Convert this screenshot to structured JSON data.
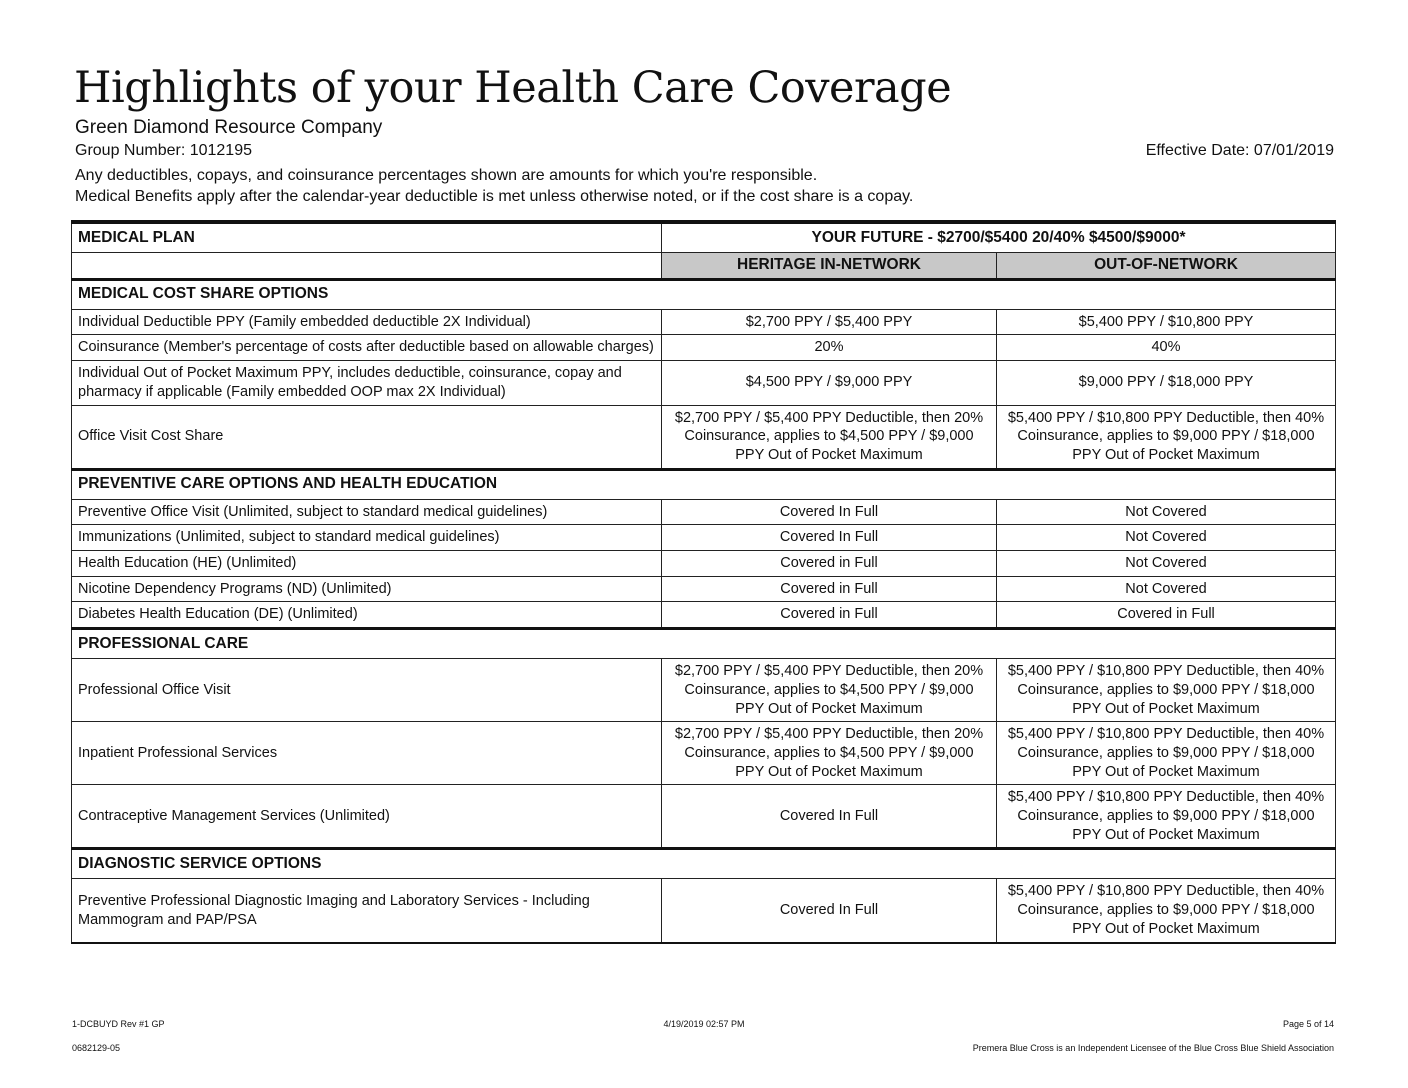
{
  "header": {
    "title": "Highlights of your Health Care Coverage",
    "company": "Green Diamond Resource Company",
    "group_number": "Group Number: 1012195",
    "effective_date": "Effective Date: 07/01/2019",
    "note1": "Any deductibles, copays, and coinsurance percentages shown are amounts for which you're responsible.",
    "note2": "Medical Benefits apply after the calendar-year deductible is met unless otherwise noted, or if the cost share is a copay."
  },
  "table": {
    "plan_label": "MEDICAL PLAN",
    "plan_name": "YOUR FUTURE - $2700/$5400 20/40%  $4500/$9000*",
    "col_in": "HERITAGE IN-NETWORK",
    "col_out": "OUT-OF-NETWORK",
    "sections": [
      {
        "title": "MEDICAL COST SHARE OPTIONS",
        "rows": [
          {
            "label": "Individual Deductible PPY (Family embedded deductible 2X Individual)",
            "in": "$2,700 PPY / $5,400 PPY",
            "out": "$5,400 PPY / $10,800 PPY"
          },
          {
            "label": "Coinsurance (Member's percentage of costs after deductible based on allowable charges)",
            "in": "20%",
            "out": "40%"
          },
          {
            "label": "Individual Out of Pocket Maximum PPY, includes deductible, coinsurance, copay and pharmacy if applicable (Family embedded OOP max 2X Individual)",
            "in": "$4,500 PPY / $9,000 PPY",
            "out": "$9,000 PPY / $18,000 PPY"
          },
          {
            "label": "Office Visit Cost Share",
            "in": "$2,700 PPY / $5,400 PPY Deductible, then 20% Coinsurance, applies to $4,500 PPY / $9,000 PPY Out of Pocket Maximum",
            "out": "$5,400 PPY / $10,800 PPY Deductible, then 40% Coinsurance, applies to $9,000 PPY / $18,000 PPY Out of Pocket Maximum"
          }
        ]
      },
      {
        "title": "PREVENTIVE CARE OPTIONS AND HEALTH EDUCATION",
        "rows": [
          {
            "label": "Preventive Office Visit (Unlimited, subject to standard medical guidelines)",
            "in": "Covered In Full",
            "out": "Not Covered"
          },
          {
            "label": "Immunizations (Unlimited, subject to standard medical guidelines)",
            "in": "Covered In Full",
            "out": "Not Covered"
          },
          {
            "label": "Health Education (HE) (Unlimited)",
            "in": "Covered in Full",
            "out": "Not Covered"
          },
          {
            "label": "Nicotine Dependency Programs (ND) (Unlimited)",
            "in": "Covered in Full",
            "out": "Not Covered"
          },
          {
            "label": "Diabetes Health Education (DE) (Unlimited)",
            "in": "Covered in Full",
            "out": "Covered in Full"
          }
        ]
      },
      {
        "title": "PROFESSIONAL CARE",
        "rows": [
          {
            "label": "Professional Office Visit",
            "in": "$2,700 PPY / $5,400 PPY Deductible, then 20% Coinsurance, applies to $4,500 PPY / $9,000 PPY Out of Pocket Maximum",
            "out": "$5,400 PPY / $10,800 PPY Deductible, then 40% Coinsurance, applies to $9,000 PPY / $18,000 PPY Out of Pocket Maximum"
          },
          {
            "label": "Inpatient Professional Services",
            "in": "$2,700 PPY / $5,400 PPY Deductible, then 20% Coinsurance, applies to $4,500 PPY / $9,000 PPY Out of Pocket Maximum",
            "out": "$5,400 PPY / $10,800 PPY Deductible, then 40% Coinsurance, applies to $9,000 PPY / $18,000 PPY Out of Pocket Maximum"
          },
          {
            "label": "Contraceptive Management Services (Unlimited)",
            "in": "Covered In Full",
            "out": "$5,400 PPY / $10,800 PPY Deductible, then 40% Coinsurance, applies to $9,000 PPY / $18,000 PPY Out of Pocket Maximum"
          }
        ]
      },
      {
        "title": "DIAGNOSTIC SERVICE OPTIONS",
        "rows": [
          {
            "label": "Preventive Professional Diagnostic Imaging and Laboratory Services - Including Mammogram and PAP/PSA",
            "in": "Covered In Full",
            "out": "$5,400 PPY / $10,800 PPY Deductible, then 40% Coinsurance, applies to $9,000 PPY / $18,000 PPY Out of Pocket Maximum"
          }
        ]
      }
    ]
  },
  "footer": {
    "form_id": "1-DCBUYD Rev #1  GP",
    "printed": "4/19/2019 02:57 PM",
    "page": "Page 5 of 14",
    "code": "0682129-05",
    "licensee": "Premera Blue Cross is an Independent Licensee of the Blue Cross Blue Shield Association"
  }
}
